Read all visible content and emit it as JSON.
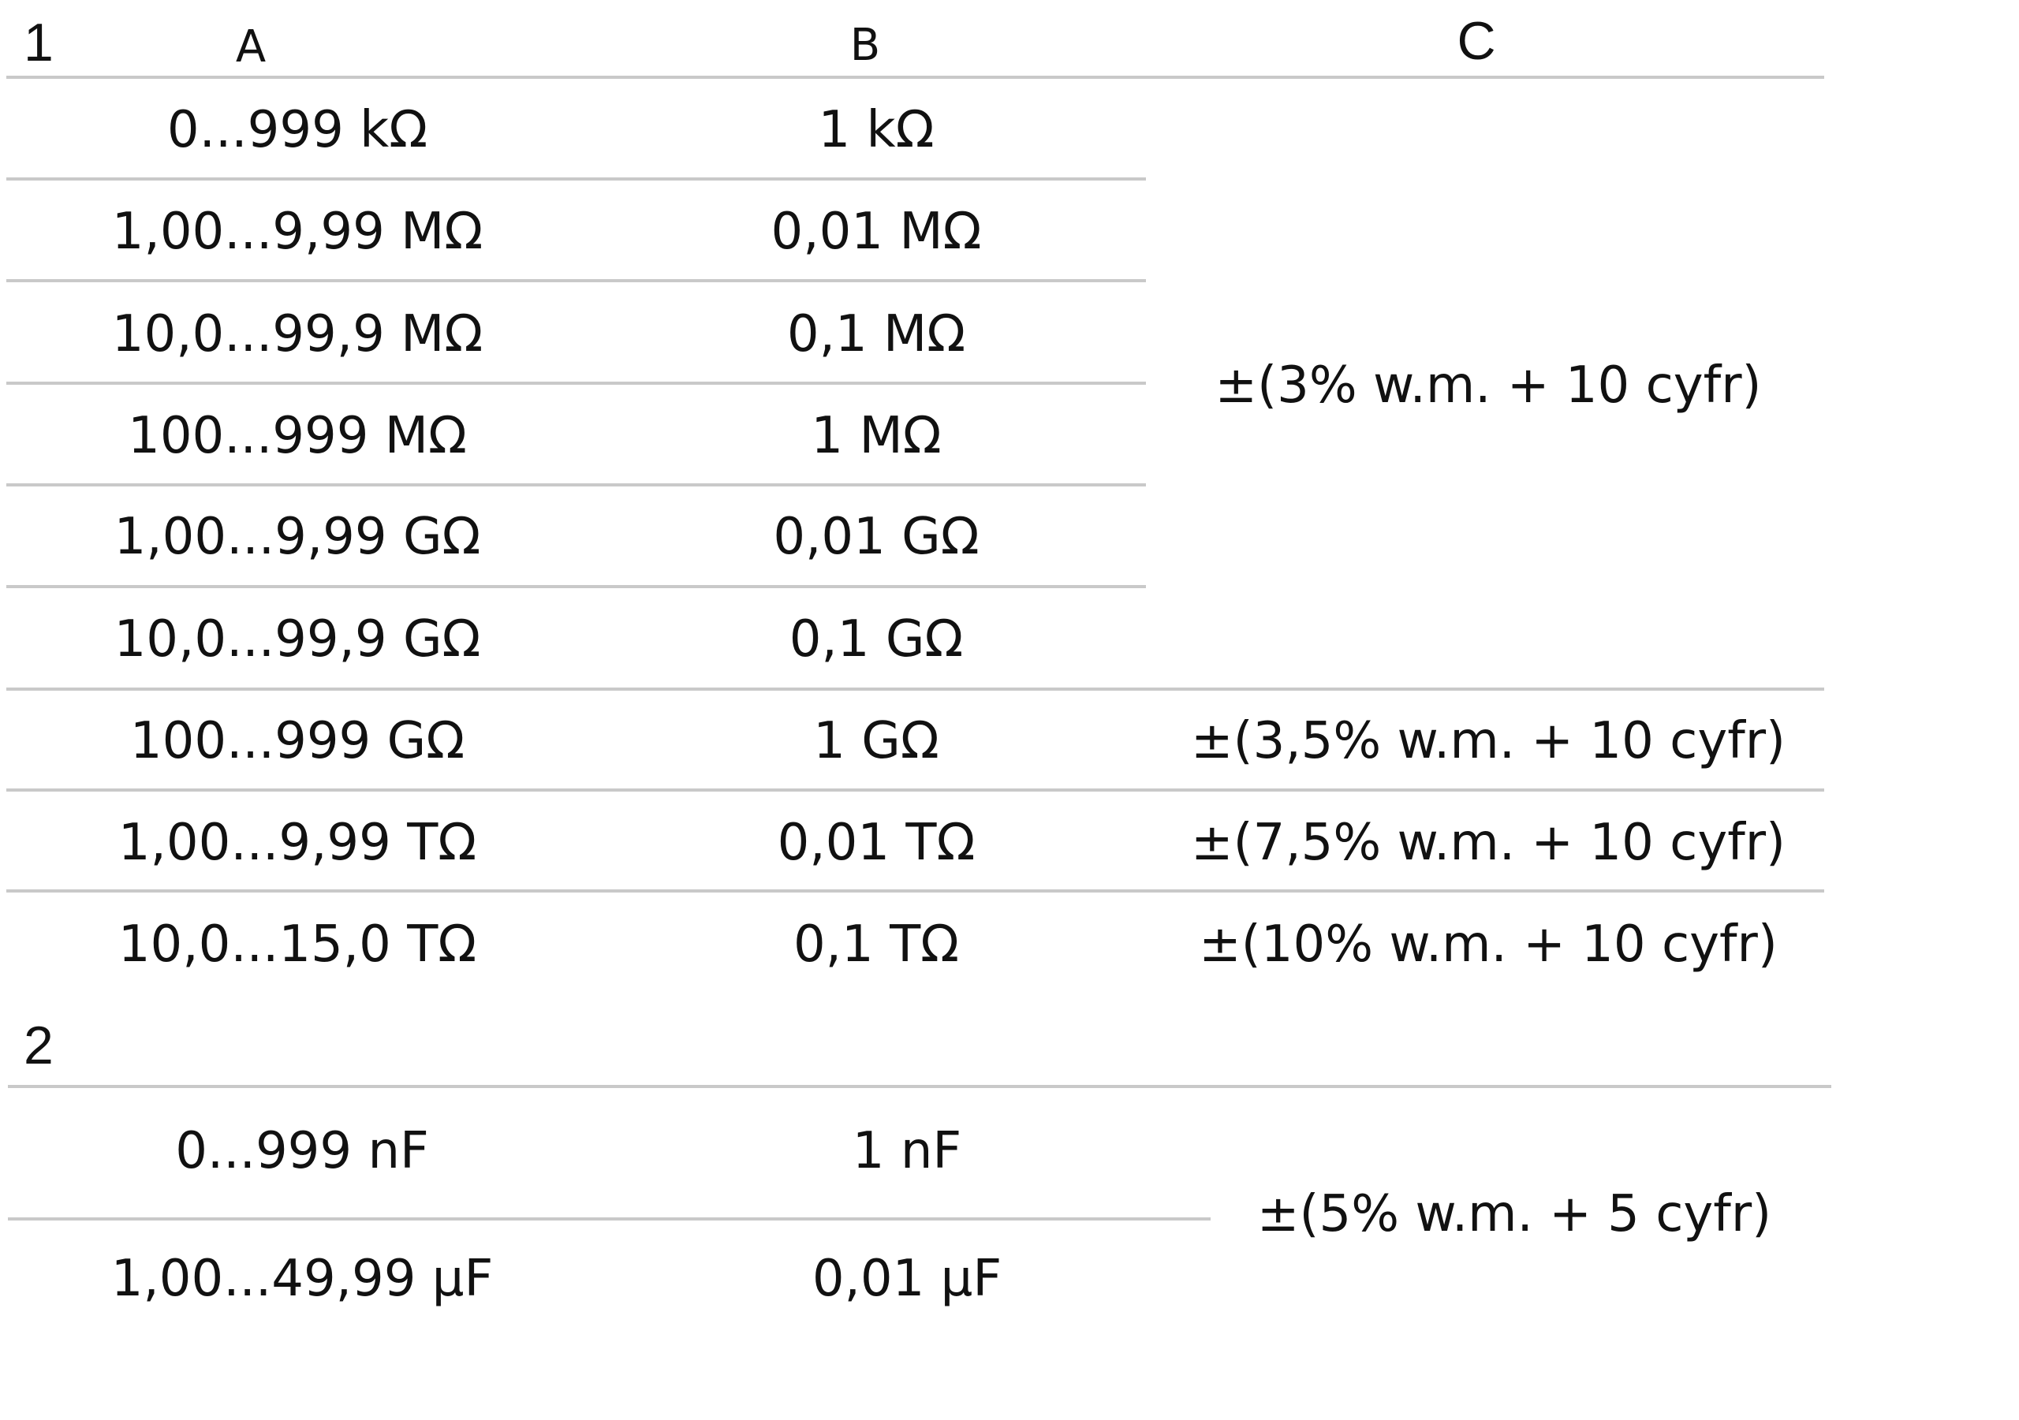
{
  "section1": {
    "number": "1",
    "headers": {
      "a": "A",
      "b": "B",
      "c": "C"
    },
    "rows": [
      {
        "range": "0...999 kΩ",
        "resolution": "1 kΩ"
      },
      {
        "range": "1,00...9,99 MΩ",
        "resolution": "0,01 MΩ"
      },
      {
        "range": "10,0...99,9 MΩ",
        "resolution": "0,1 MΩ"
      },
      {
        "range": "100...999 MΩ",
        "resolution": "1 MΩ"
      },
      {
        "range": "1,00...9,99 GΩ",
        "resolution": "0,01 GΩ"
      },
      {
        "range": "10,0...99,9 GΩ",
        "resolution": "0,1 GΩ"
      },
      {
        "range": "100...999 GΩ",
        "resolution": "1 GΩ"
      },
      {
        "range": "1,00...9,99 TΩ",
        "resolution": "0,01 TΩ"
      },
      {
        "range": "10,0...15,0 TΩ",
        "resolution": "0,1 TΩ"
      }
    ],
    "accuracy": [
      "±(3% w.m. + 10 cyfr)",
      "±(3,5% w.m. + 10 cyfr)",
      "±(7,5% w.m. + 10 cyfr)",
      "±(10% w.m. + 10 cyfr)"
    ]
  },
  "section2": {
    "number": "2",
    "rows": [
      {
        "range": "0...999 nF",
        "resolution": "1 nF"
      },
      {
        "range": "1,00...49,99 µF",
        "resolution": "0,01 µF"
      }
    ],
    "accuracy": "±(5% w.m. + 5 cyfr)"
  }
}
